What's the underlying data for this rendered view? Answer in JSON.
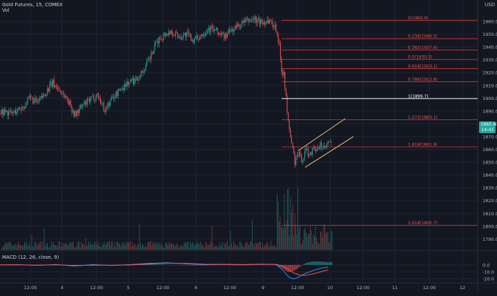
{
  "header": {
    "symbol_line": "Gold Futures, 15, COMEX",
    "volume_label": "Vol",
    "currency": "USD"
  },
  "price_badges": {
    "last": "1865.6",
    "countdown": "14:41"
  },
  "macd_label": "MACD (12, 26, close, 9)",
  "colors": {
    "background": "#131722",
    "up": "#26a69a",
    "down": "#ef5350",
    "fib_line": "#e53935",
    "fib_text": "#ef5350",
    "fib_one": "#ffffff",
    "channel": "#f5c77e",
    "grid": "#1f2433",
    "axis_text": "#b2b5be",
    "macd": "#2196f3",
    "signal": "#ff5252"
  },
  "chart_data": [
    {
      "type": "candlestick",
      "title": "Gold Futures, 15, COMEX",
      "ylim": [
        1785,
        1965
      ],
      "y_ticks": [
        "1960.0",
        "1950.0",
        "1940.0",
        "1930.0",
        "1920.0",
        "1910.0",
        "1900.0",
        "1890.0",
        "1880.0",
        "1870.0",
        "1860.0",
        "1850.0",
        "1840.0",
        "1830.0",
        "1820.0",
        "1810.0",
        "1800.0",
        "1790.0"
      ],
      "x_ticks": [
        "12:00",
        "4",
        "12:00",
        "5",
        "12:00",
        "6",
        "12:00",
        "9",
        "12:00",
        "10",
        "12:00",
        "11",
        "12:00",
        "12"
      ],
      "fib_levels": [
        {
          "label": "0(1960.9)",
          "value": 1960.9
        },
        {
          "label": "0.236(1946.5)",
          "value": 1946.5
        },
        {
          "label": "0.382(1937.6)",
          "value": 1937.6
        },
        {
          "label": "0.5(1930.3)",
          "value": 1930.3
        },
        {
          "label": "0.618(1923.1)",
          "value": 1923.1
        },
        {
          "label": "0.786(1912.8)",
          "value": 1912.8
        },
        {
          "label": "1(1899.7)",
          "value": 1899.7
        },
        {
          "label": "1.272(1883.1)",
          "value": 1883.1
        },
        {
          "label": "1.618(1861.9)",
          "value": 1861.9
        },
        {
          "label": "2.618(1800.7)",
          "value": 1800.7
        }
      ],
      "channel": {
        "upper": [
          [
            0,
            1859
          ],
          [
            1,
            1884
          ]
        ],
        "lower": [
          [
            0,
            1846
          ],
          [
            1,
            1870
          ]
        ]
      },
      "price_path": [
        [
          0,
          1890
        ],
        [
          0.03,
          1888
        ],
        [
          0.06,
          1893
        ],
        [
          0.08,
          1900
        ],
        [
          0.1,
          1896
        ],
        [
          0.12,
          1904
        ],
        [
          0.14,
          1912
        ],
        [
          0.16,
          1906
        ],
        [
          0.18,
          1899
        ],
        [
          0.2,
          1887
        ],
        [
          0.22,
          1894
        ],
        [
          0.24,
          1898
        ],
        [
          0.26,
          1903
        ],
        [
          0.28,
          1891
        ],
        [
          0.3,
          1900
        ],
        [
          0.32,
          1906
        ],
        [
          0.34,
          1912
        ],
        [
          0.36,
          1914
        ],
        [
          0.38,
          1920
        ],
        [
          0.4,
          1930
        ],
        [
          0.42,
          1944
        ],
        [
          0.44,
          1950
        ],
        [
          0.46,
          1952
        ],
        [
          0.48,
          1948
        ],
        [
          0.5,
          1950
        ],
        [
          0.52,
          1945
        ],
        [
          0.54,
          1950
        ],
        [
          0.56,
          1955
        ],
        [
          0.58,
          1952
        ],
        [
          0.6,
          1948
        ],
        [
          0.62,
          1953
        ],
        [
          0.64,
          1957
        ],
        [
          0.66,
          1960
        ],
        [
          0.68,
          1962
        ],
        [
          0.7,
          1959
        ],
        [
          0.72,
          1961
        ],
        [
          0.73,
          1958
        ],
        [
          0.74,
          1955
        ],
        [
          0.75,
          1938
        ],
        [
          0.755,
          1920
        ],
        [
          0.76,
          1922
        ],
        [
          0.765,
          1905
        ],
        [
          0.77,
          1885
        ],
        [
          0.775,
          1877
        ],
        [
          0.78,
          1866
        ],
        [
          0.785,
          1860
        ],
        [
          0.79,
          1850
        ],
        [
          0.8,
          1856
        ],
        [
          0.81,
          1852
        ],
        [
          0.82,
          1860
        ],
        [
          0.83,
          1855
        ],
        [
          0.84,
          1863
        ],
        [
          0.85,
          1858
        ],
        [
          0.86,
          1864
        ],
        [
          0.87,
          1860
        ],
        [
          0.88,
          1865
        ]
      ]
    },
    {
      "type": "line",
      "title": "MACD (12, 26, close, 9)",
      "ylim": [
        -26,
        8
      ],
      "y_ticks": [
        "0.0",
        "-10.0",
        "-20.0"
      ],
      "series": [
        {
          "values": [
            [
              0,
              0
            ],
            [
              0.05,
              0.4
            ],
            [
              0.1,
              -0.6
            ],
            [
              0.15,
              0.8
            ],
            [
              0.2,
              -1.6
            ],
            [
              0.25,
              0.5
            ],
            [
              0.3,
              -0.8
            ],
            [
              0.35,
              0.6
            ],
            [
              0.4,
              2.4
            ],
            [
              0.45,
              3.1
            ],
            [
              0.5,
              1.6
            ],
            [
              0.55,
              0.4
            ],
            [
              0.6,
              1.0
            ],
            [
              0.65,
              0.2
            ],
            [
              0.7,
              1.2
            ],
            [
              0.74,
              0.8
            ],
            [
              0.76,
              -8
            ],
            [
              0.77,
              -15
            ],
            [
              0.78,
              -19
            ],
            [
              0.79,
              -20
            ],
            [
              0.8,
              -18
            ],
            [
              0.81,
              -15
            ],
            [
              0.82,
              -12
            ],
            [
              0.84,
              -8
            ],
            [
              0.86,
              -5
            ],
            [
              0.88,
              -3
            ]
          ]
        },
        {
          "values": [
            [
              0,
              0.2
            ],
            [
              0.05,
              0.2
            ],
            [
              0.1,
              -0.2
            ],
            [
              0.15,
              0.3
            ],
            [
              0.2,
              -0.9
            ],
            [
              0.25,
              -0.2
            ],
            [
              0.3,
              -0.4
            ],
            [
              0.35,
              0.1
            ],
            [
              0.4,
              1.4
            ],
            [
              0.45,
              2.6
            ],
            [
              0.5,
              2.2
            ],
            [
              0.55,
              1.0
            ],
            [
              0.6,
              0.8
            ],
            [
              0.65,
              0.6
            ],
            [
              0.7,
              0.9
            ],
            [
              0.74,
              0.9
            ],
            [
              0.76,
              -2
            ],
            [
              0.77,
              -5
            ],
            [
              0.78,
              -9
            ],
            [
              0.79,
              -12
            ],
            [
              0.8,
              -14
            ],
            [
              0.81,
              -15
            ],
            [
              0.82,
              -15
            ],
            [
              0.84,
              -13
            ],
            [
              0.86,
              -10
            ],
            [
              0.88,
              -7
            ]
          ]
        }
      ]
    }
  ]
}
